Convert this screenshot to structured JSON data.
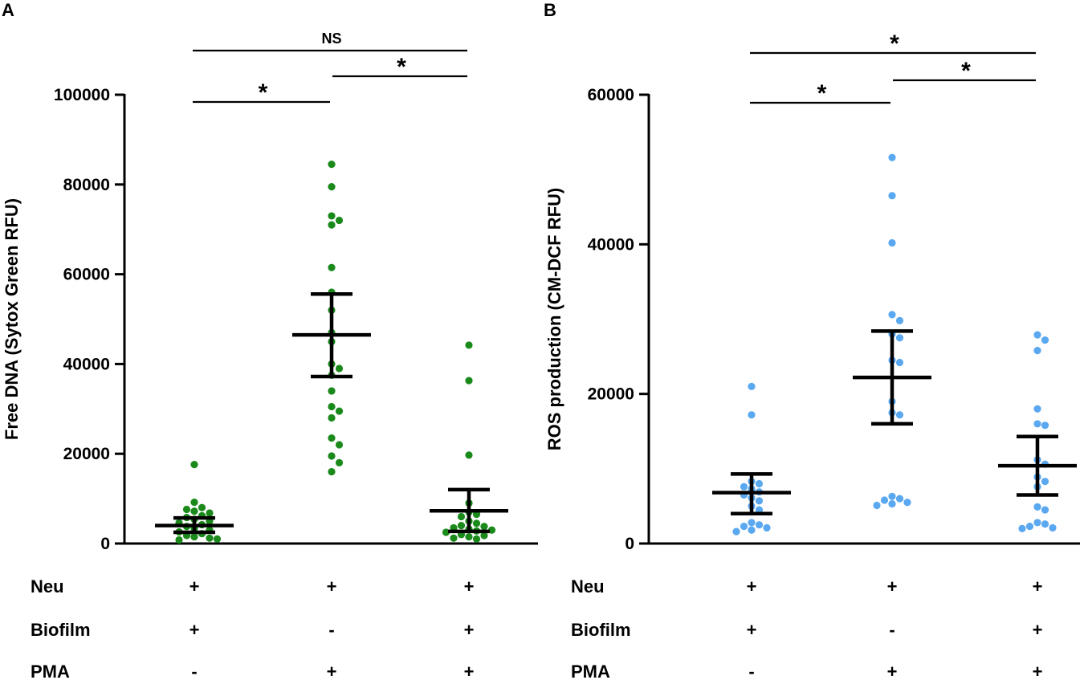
{
  "panels": [
    "A",
    "B"
  ],
  "conditions": {
    "row_labels": [
      "Neu",
      "Biofilm",
      "PMA"
    ],
    "groups": [
      {
        "Neu": "+",
        "Biofilm": "+",
        "PMA": "-"
      },
      {
        "Neu": "+",
        "Biofilm": "-",
        "PMA": "+"
      },
      {
        "Neu": "+",
        "Biofilm": "+",
        "PMA": "+"
      }
    ]
  },
  "colors": {
    "panel_A_points": "#1a8a1a",
    "panel_B_points": "#5aa8f0",
    "axes": "#000000"
  },
  "chart_data": [
    {
      "type": "scatter",
      "panel": "A",
      "ylabel": "Free DNA (Sytox Green RFU)",
      "ylim": [
        0,
        100000
      ],
      "yticks": [
        0,
        20000,
        40000,
        60000,
        80000,
        100000
      ],
      "ytick_labels": [
        "0",
        "20000",
        "40000",
        "60000",
        "80000",
        "100000"
      ],
      "groups": [
        {
          "mean": 4000,
          "err_low": 2500,
          "err_high": 5700,
          "values": [
            17600,
            9200,
            8000,
            7600,
            7200,
            6800,
            6200,
            5800,
            5400,
            5000,
            4600,
            4200,
            3800,
            3400,
            3000,
            2600,
            2200,
            1800,
            1500,
            1200,
            1000,
            800
          ]
        },
        {
          "mean": 46500,
          "err_low": 37200,
          "err_high": 55600,
          "values": [
            84500,
            79500,
            73000,
            72000,
            71000,
            61500,
            56000,
            52000,
            47000,
            45000,
            40000,
            39000,
            37500,
            34000,
            30500,
            29500,
            28000,
            23500,
            22000,
            19500,
            18000,
            16000
          ]
        },
        {
          "mean": 7300,
          "err_low": 2700,
          "err_high": 12000,
          "values": [
            44200,
            36300,
            19700,
            9000,
            7000,
            6500,
            6000,
            5000,
            4500,
            4000,
            3800,
            3500,
            3200,
            3000,
            2800,
            2500,
            2000,
            1800,
            1500,
            1200,
            1000
          ]
        }
      ],
      "comparisons": [
        {
          "from": 0,
          "to": 2,
          "label": "NS"
        },
        {
          "from": 1,
          "to": 2,
          "label": "*"
        },
        {
          "from": 0,
          "to": 1,
          "label": "*"
        }
      ]
    },
    {
      "type": "scatter",
      "panel": "B",
      "ylabel": "ROS production (CM-DCF RFU)",
      "ylim": [
        0,
        60000
      ],
      "yticks": [
        0,
        20000,
        40000,
        60000
      ],
      "ytick_labels": [
        "0",
        "20000",
        "40000",
        "60000"
      ],
      "groups": [
        {
          "mean": 6800,
          "err_low": 4000,
          "err_high": 9300,
          "values": [
            21000,
            17200,
            8300,
            8000,
            7600,
            7300,
            6900,
            6500,
            6100,
            5700,
            5000,
            4500,
            2800,
            2500,
            2300,
            2100,
            1800,
            1600
          ]
        },
        {
          "mean": 22200,
          "err_low": 16000,
          "err_high": 28400,
          "values": [
            51600,
            46500,
            40200,
            30600,
            29800,
            28000,
            27500,
            24500,
            24200,
            19000,
            17500,
            17200,
            6300,
            6000,
            5800,
            5500,
            5300,
            5100
          ]
        },
        {
          "mean": 10400,
          "err_low": 6500,
          "err_high": 14300,
          "values": [
            27900,
            27200,
            25800,
            18000,
            16000,
            15800,
            11200,
            10600,
            8900,
            8300,
            7600,
            4900,
            4500,
            2800,
            2600,
            2300,
            2100,
            2000
          ]
        }
      ],
      "comparisons": [
        {
          "from": 0,
          "to": 2,
          "label": "*"
        },
        {
          "from": 1,
          "to": 2,
          "label": "*"
        },
        {
          "from": 0,
          "to": 1,
          "label": "*"
        }
      ]
    }
  ]
}
